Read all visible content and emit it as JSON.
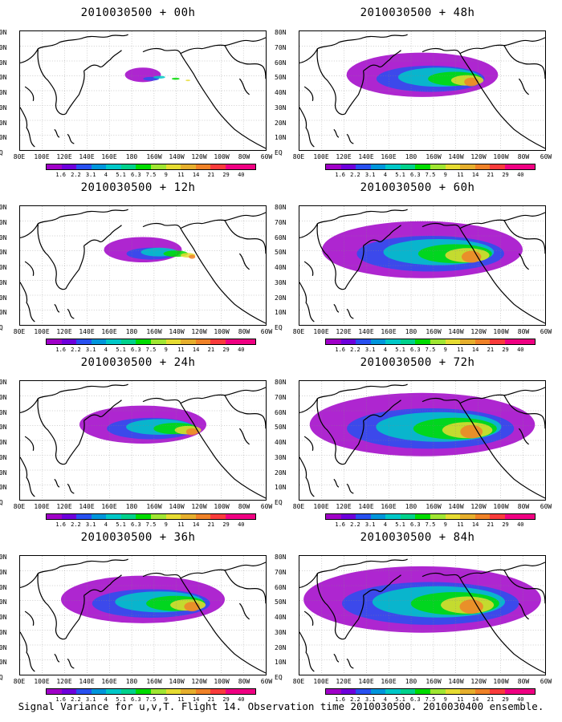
{
  "panels": [
    {
      "title": "2010030500 + 00h",
      "coverage": 0.08
    },
    {
      "title": "2010030500 + 48h",
      "coverage": 0.55
    },
    {
      "title": "2010030500 + 12h",
      "coverage": 0.25
    },
    {
      "title": "2010030500 + 60h",
      "coverage": 0.75
    },
    {
      "title": "2010030500 + 24h",
      "coverage": 0.45
    },
    {
      "title": "2010030500 + 72h",
      "coverage": 0.85
    },
    {
      "title": "2010030500 + 36h",
      "coverage": 0.6
    },
    {
      "title": "2010030500 + 84h",
      "coverage": 0.9
    }
  ],
  "lat_labels": [
    "80N",
    "70N",
    "60N",
    "50N",
    "40N",
    "30N",
    "20N",
    "10N",
    "EQ"
  ],
  "lon_labels": [
    "80E",
    "100E",
    "120E",
    "140E",
    "160E",
    "180",
    "160W",
    "140W",
    "120W",
    "100W",
    "80W",
    "60W"
  ],
  "colorbar": {
    "labels": [
      "1.6",
      "2.2",
      "3.1",
      "4",
      "5.1",
      "6.3",
      "7.5",
      "9",
      "11",
      "14",
      "21",
      "29",
      "40"
    ],
    "colors": [
      "#a000c8",
      "#6e00dc",
      "#2850f0",
      "#0096dc",
      "#00c8c8",
      "#00d28c",
      "#00dc00",
      "#a0e632",
      "#e6dc32",
      "#e6af2d",
      "#f08228",
      "#fa3c3c",
      "#f00082"
    ]
  },
  "caption": "Signal Variance for u,v,T. Flight 14. Observation time 2010030500. 2010030400 ensemble."
}
